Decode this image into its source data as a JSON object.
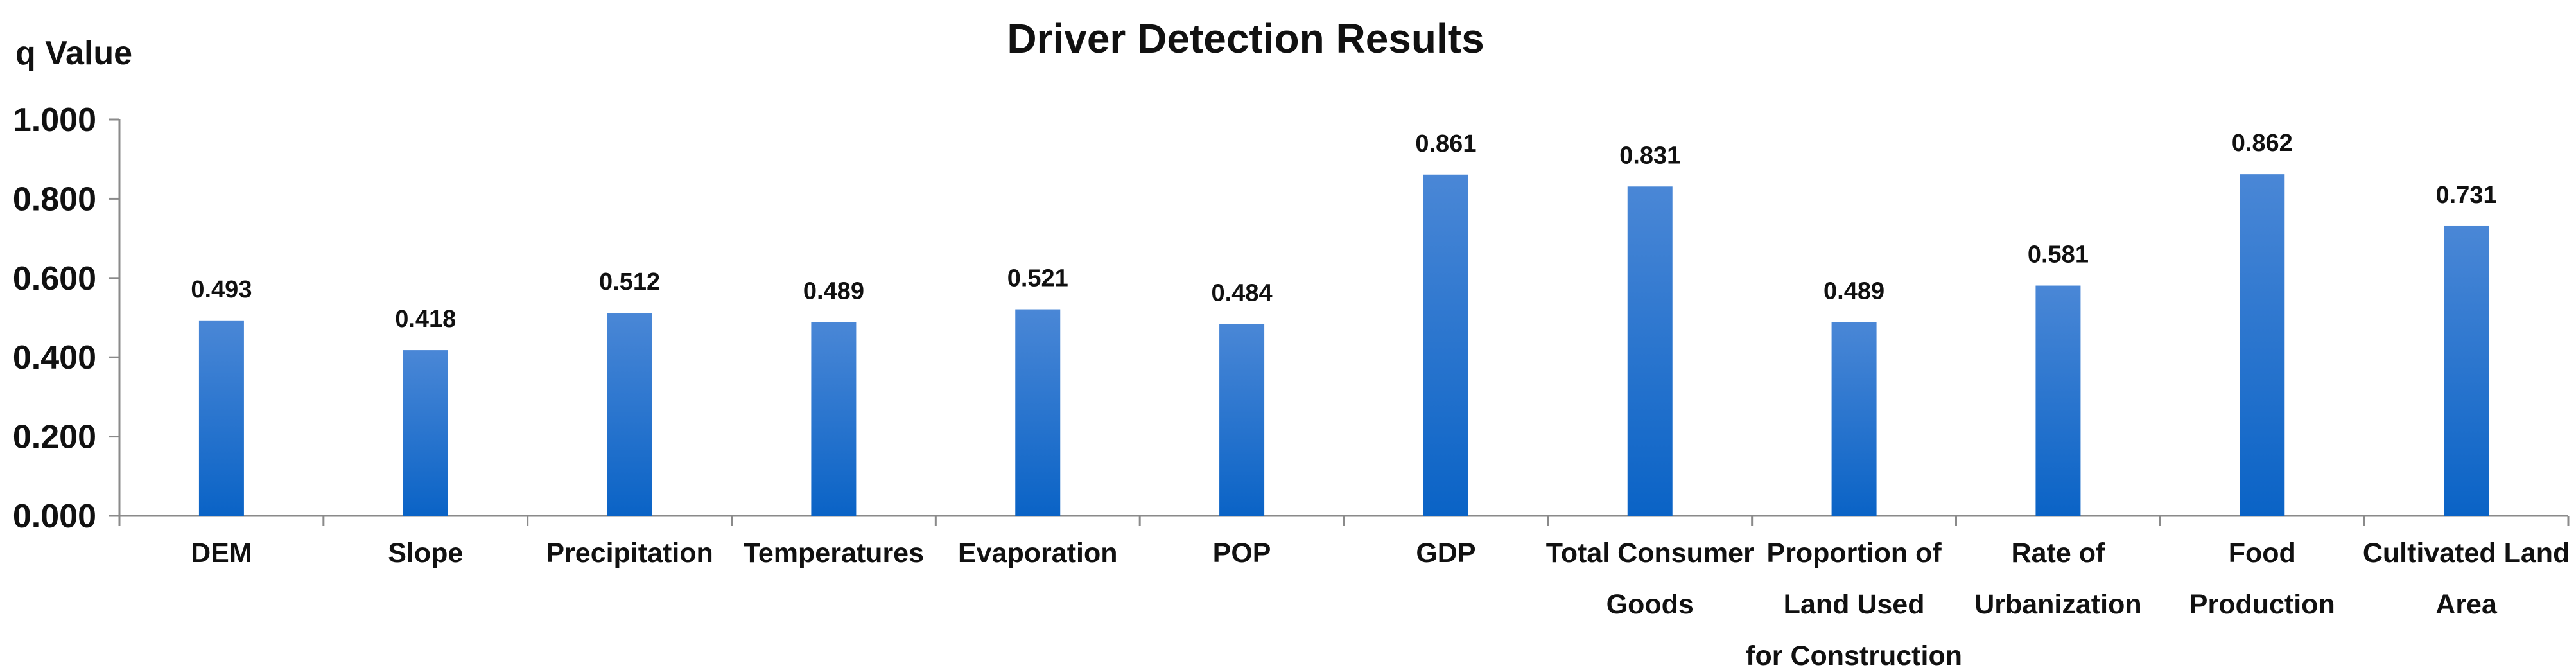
{
  "chart_data": {
    "type": "bar",
    "title": "Driver Detection Results",
    "xlabel": "",
    "ylabel": "q Value",
    "ylim": [
      0,
      1
    ],
    "yticks": [
      "0.000",
      "0.200",
      "0.400",
      "0.600",
      "0.800",
      "1.000"
    ],
    "ytick_values": [
      0,
      0.2,
      0.4,
      0.6,
      0.8,
      1.0
    ],
    "grid": false,
    "legend": "none",
    "bar_color_top": "#4a87d6",
    "bar_color_bottom": "#0a63c6",
    "categories": [
      "DEM",
      "Slope",
      "Precipitation",
      "Temperatures",
      "Evaporation",
      "POP",
      "GDP",
      "Total Consumer Goods",
      "Proportion of Land Used for Construction",
      "Rate of Urbanization",
      "Food Production",
      "Cultivated Land Area"
    ],
    "category_lines": [
      [
        "DEM"
      ],
      [
        "Slope"
      ],
      [
        "Precipitation"
      ],
      [
        "Temperatures"
      ],
      [
        "Evaporation"
      ],
      [
        "POP"
      ],
      [
        "GDP"
      ],
      [
        "Total Consumer",
        "Goods"
      ],
      [
        "Proportion of",
        "Land Used",
        "for Construction"
      ],
      [
        "Rate of",
        "Urbanization"
      ],
      [
        "Food",
        "Production"
      ],
      [
        "Cultivated Land",
        "Area"
      ]
    ],
    "values": [
      0.493,
      0.418,
      0.512,
      0.489,
      0.521,
      0.484,
      0.861,
      0.831,
      0.489,
      0.581,
      0.862,
      0.731
    ],
    "data_labels": [
      "0.493",
      "0.418",
      "0.512",
      "0.489",
      "0.521",
      "0.484",
      "0.861",
      "0.831",
      "0.489",
      "0.581",
      "0.862",
      "0.731"
    ]
  }
}
